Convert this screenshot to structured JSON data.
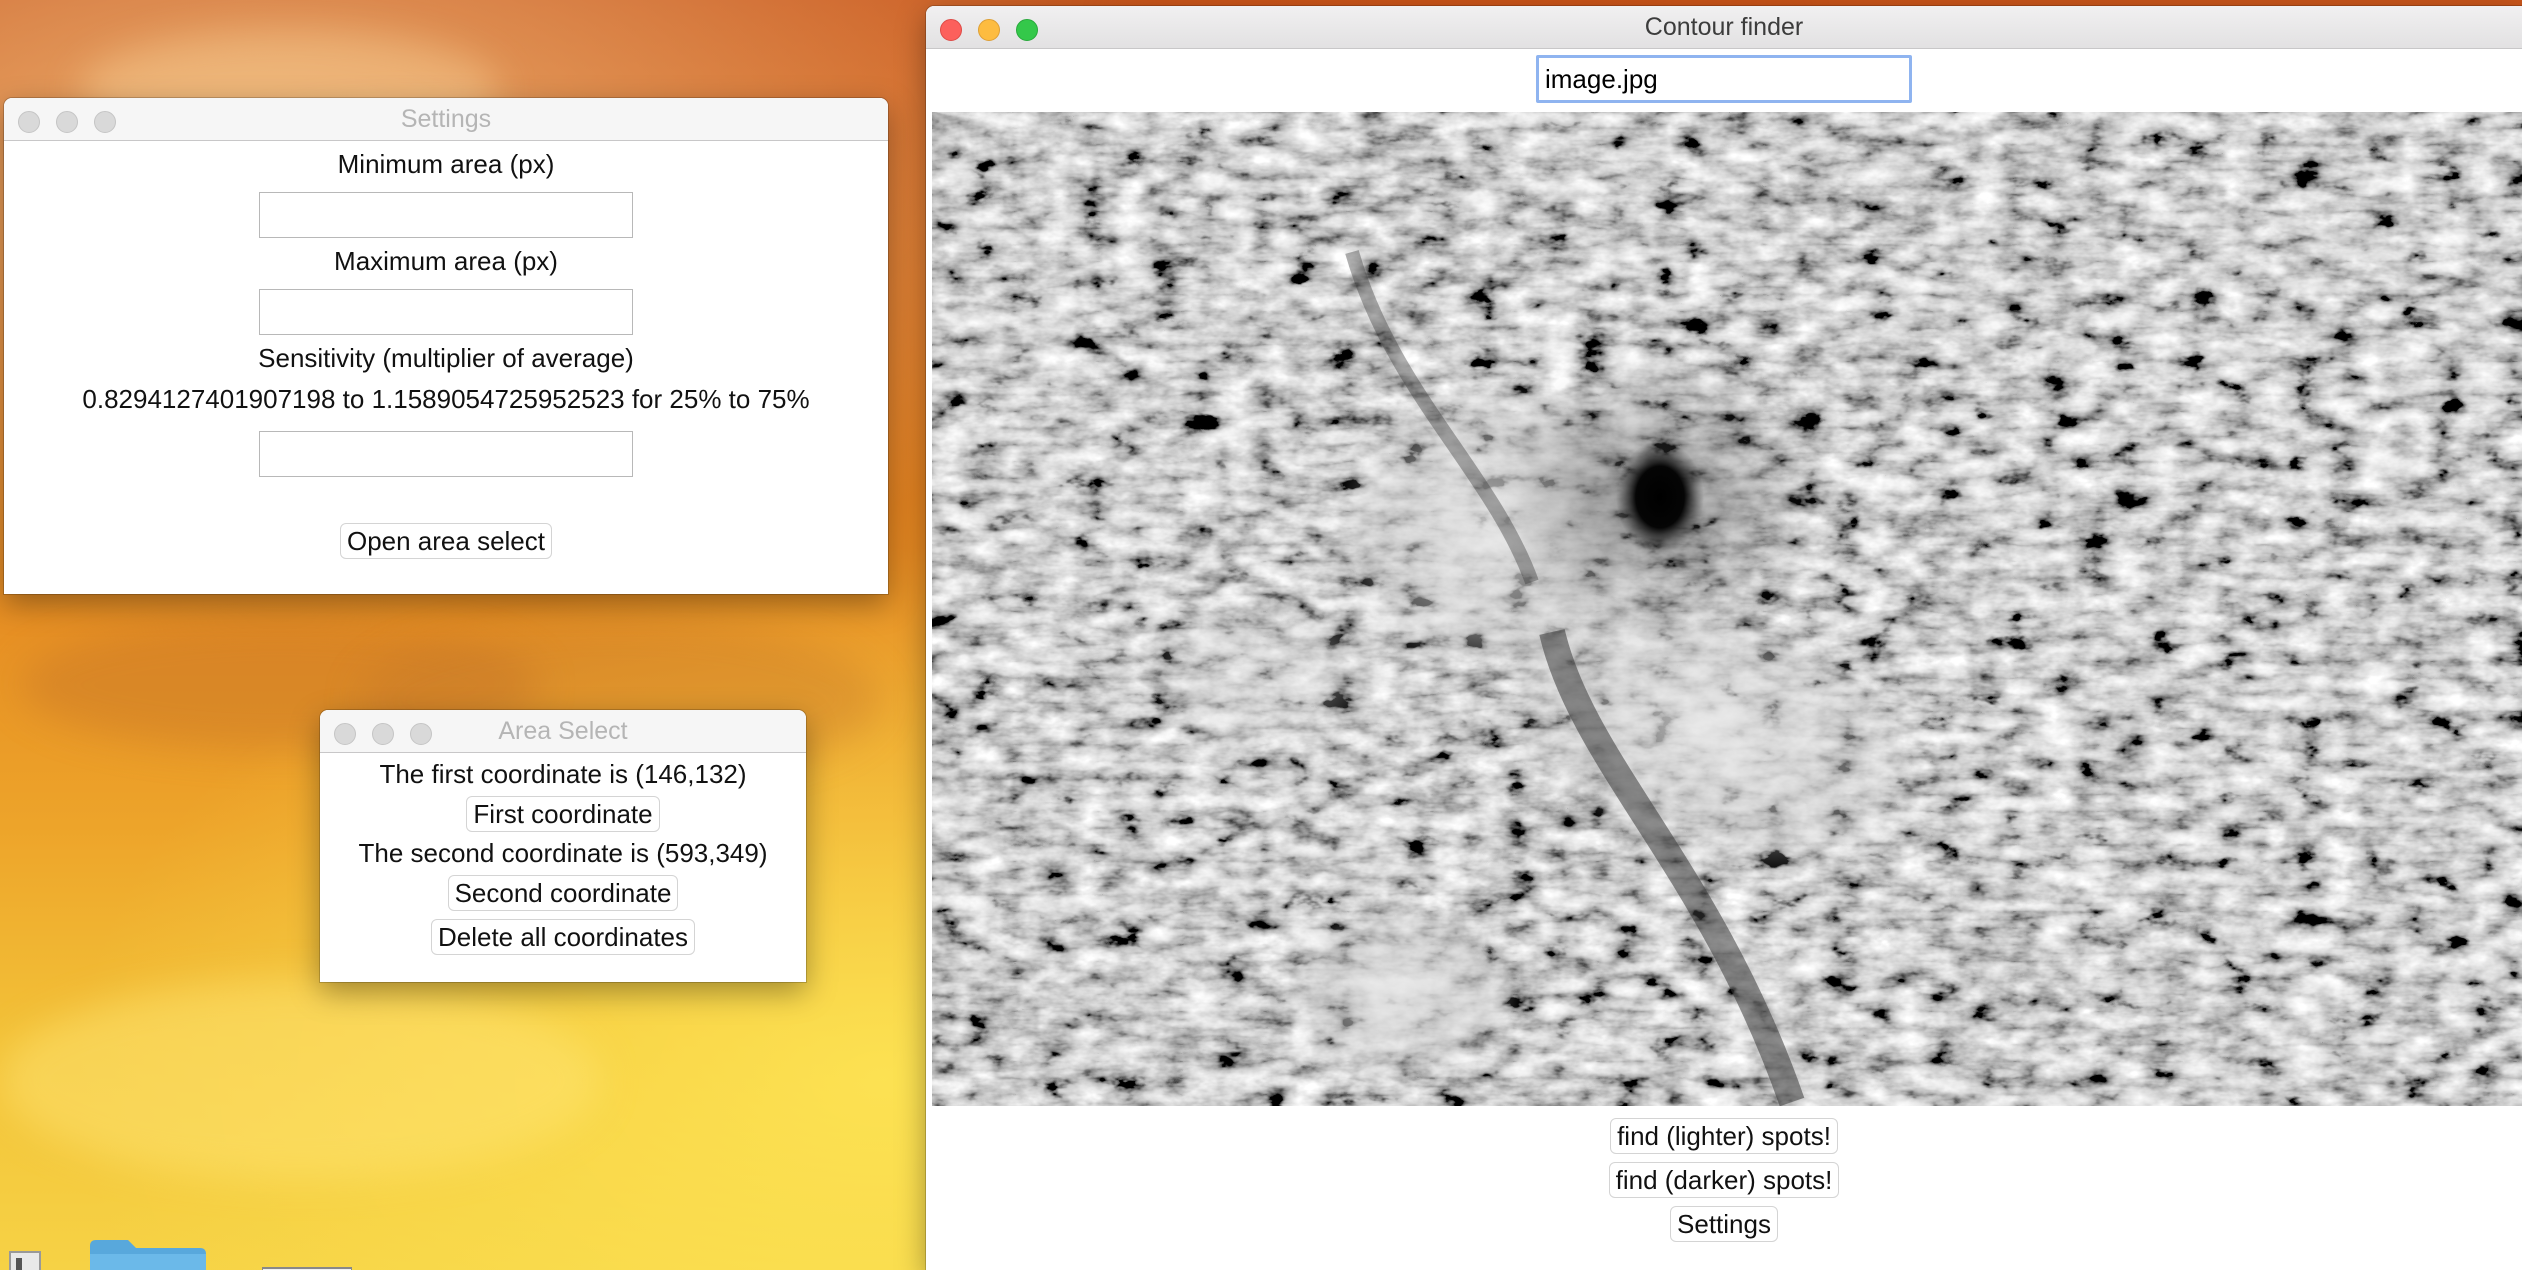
{
  "contour_window": {
    "title": "Contour finder",
    "filename_value": "image.jpg",
    "buttons": {
      "find_lighter": "find (lighter) spots!",
      "find_darker": "find (darker) spots!",
      "settings": "Settings"
    }
  },
  "settings_window": {
    "title": "Settings",
    "min_area_label": "Minimum area (px)",
    "min_area_value": "",
    "max_area_label": "Maximum area (px)",
    "max_area_value": "",
    "sensitivity_label": "Sensitivity (multiplier of average)",
    "sensitivity_range": "0.8294127401907198 to 1.1589054725952523 for 25% to 75%",
    "sensitivity_value": "",
    "open_area_select": "Open area select"
  },
  "area_window": {
    "title": "Area Select",
    "first_text": "The first coordinate is (146,132)",
    "first_button": "First coordinate",
    "second_text": "The second coordinate is (593,349)",
    "second_button": "Second coordinate",
    "delete_button": "Delete all coordinates"
  },
  "icons": {
    "folder": "folder-icon",
    "desktop_item": "desktop-item-icon"
  }
}
